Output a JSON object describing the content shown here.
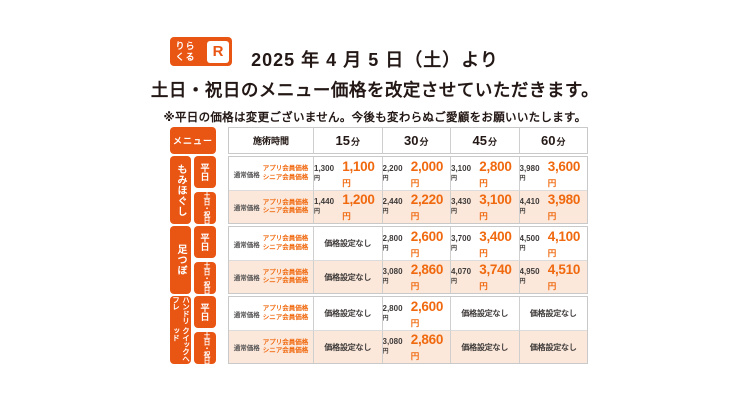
{
  "logo": {
    "brand_chars": [
      "り",
      "ら",
      "く",
      "る"
    ],
    "mark": "R",
    "brand_name": "りらくる"
  },
  "header": {
    "line1": "2025 年 4 月 5 日（土）より",
    "line2": "土日・祝日のメニュー価格を改定させていただきます。",
    "note": "※平日の価格は変更ございません。今後も変わらぬご愛顧をお願いいたします。"
  },
  "colors": {
    "accent_orange": "#E95513",
    "member_price_orange": "#F0690F",
    "weekend_row_bg": "#FBE8DB",
    "grid_border": "#C9C9C9",
    "text_dark": "#231815"
  },
  "table": {
    "menu_label": "メニュー",
    "time_header": "施術時間",
    "durations": [
      "15分",
      "30分",
      "45分",
      "60分"
    ],
    "price_labels": {
      "normal": "通常価格",
      "member_line1": "アプリ会員価格",
      "member_line2": "シニア会員価格"
    },
    "currency": "円",
    "no_price": "価格設定なし",
    "sections": [
      {
        "name_lines": [
          "もみほぐし"
        ],
        "rows": [
          {
            "day": "平日",
            "weekend": false,
            "prices": [
              {
                "normal": "1,300",
                "member": "1,100"
              },
              {
                "normal": "2,200",
                "member": "2,000"
              },
              {
                "normal": "3,100",
                "member": "2,800"
              },
              {
                "normal": "3,980",
                "member": "3,600"
              }
            ]
          },
          {
            "day": "土日・祝日",
            "weekend": true,
            "prices": [
              {
                "normal": "1,440",
                "member": "1,200"
              },
              {
                "normal": "2,440",
                "member": "2,220"
              },
              {
                "normal": "3,430",
                "member": "3,100"
              },
              {
                "normal": "4,410",
                "member": "3,980"
              }
            ]
          }
        ]
      },
      {
        "name_lines": [
          "足つぼ"
        ],
        "rows": [
          {
            "day": "平日",
            "weekend": false,
            "prices": [
              null,
              {
                "normal": "2,800",
                "member": "2,600"
              },
              {
                "normal": "3,700",
                "member": "3,400"
              },
              {
                "normal": "4,500",
                "member": "4,100"
              }
            ]
          },
          {
            "day": "土日・祝日",
            "weekend": true,
            "prices": [
              null,
              {
                "normal": "3,080",
                "member": "2,860"
              },
              {
                "normal": "4,070",
                "member": "3,740"
              },
              {
                "normal": "4,950",
                "member": "4,510"
              }
            ]
          }
        ]
      },
      {
        "name_lines": [
          "ハンドリフレ",
          "クイックヘッド"
        ],
        "rows": [
          {
            "day": "平日",
            "weekend": false,
            "prices": [
              null,
              {
                "normal": "2,800",
                "member": "2,600"
              },
              null,
              null
            ]
          },
          {
            "day": "土日・祝日",
            "weekend": true,
            "prices": [
              null,
              {
                "normal": "3,080",
                "member": "2,860"
              },
              null,
              null
            ]
          }
        ]
      }
    ]
  }
}
